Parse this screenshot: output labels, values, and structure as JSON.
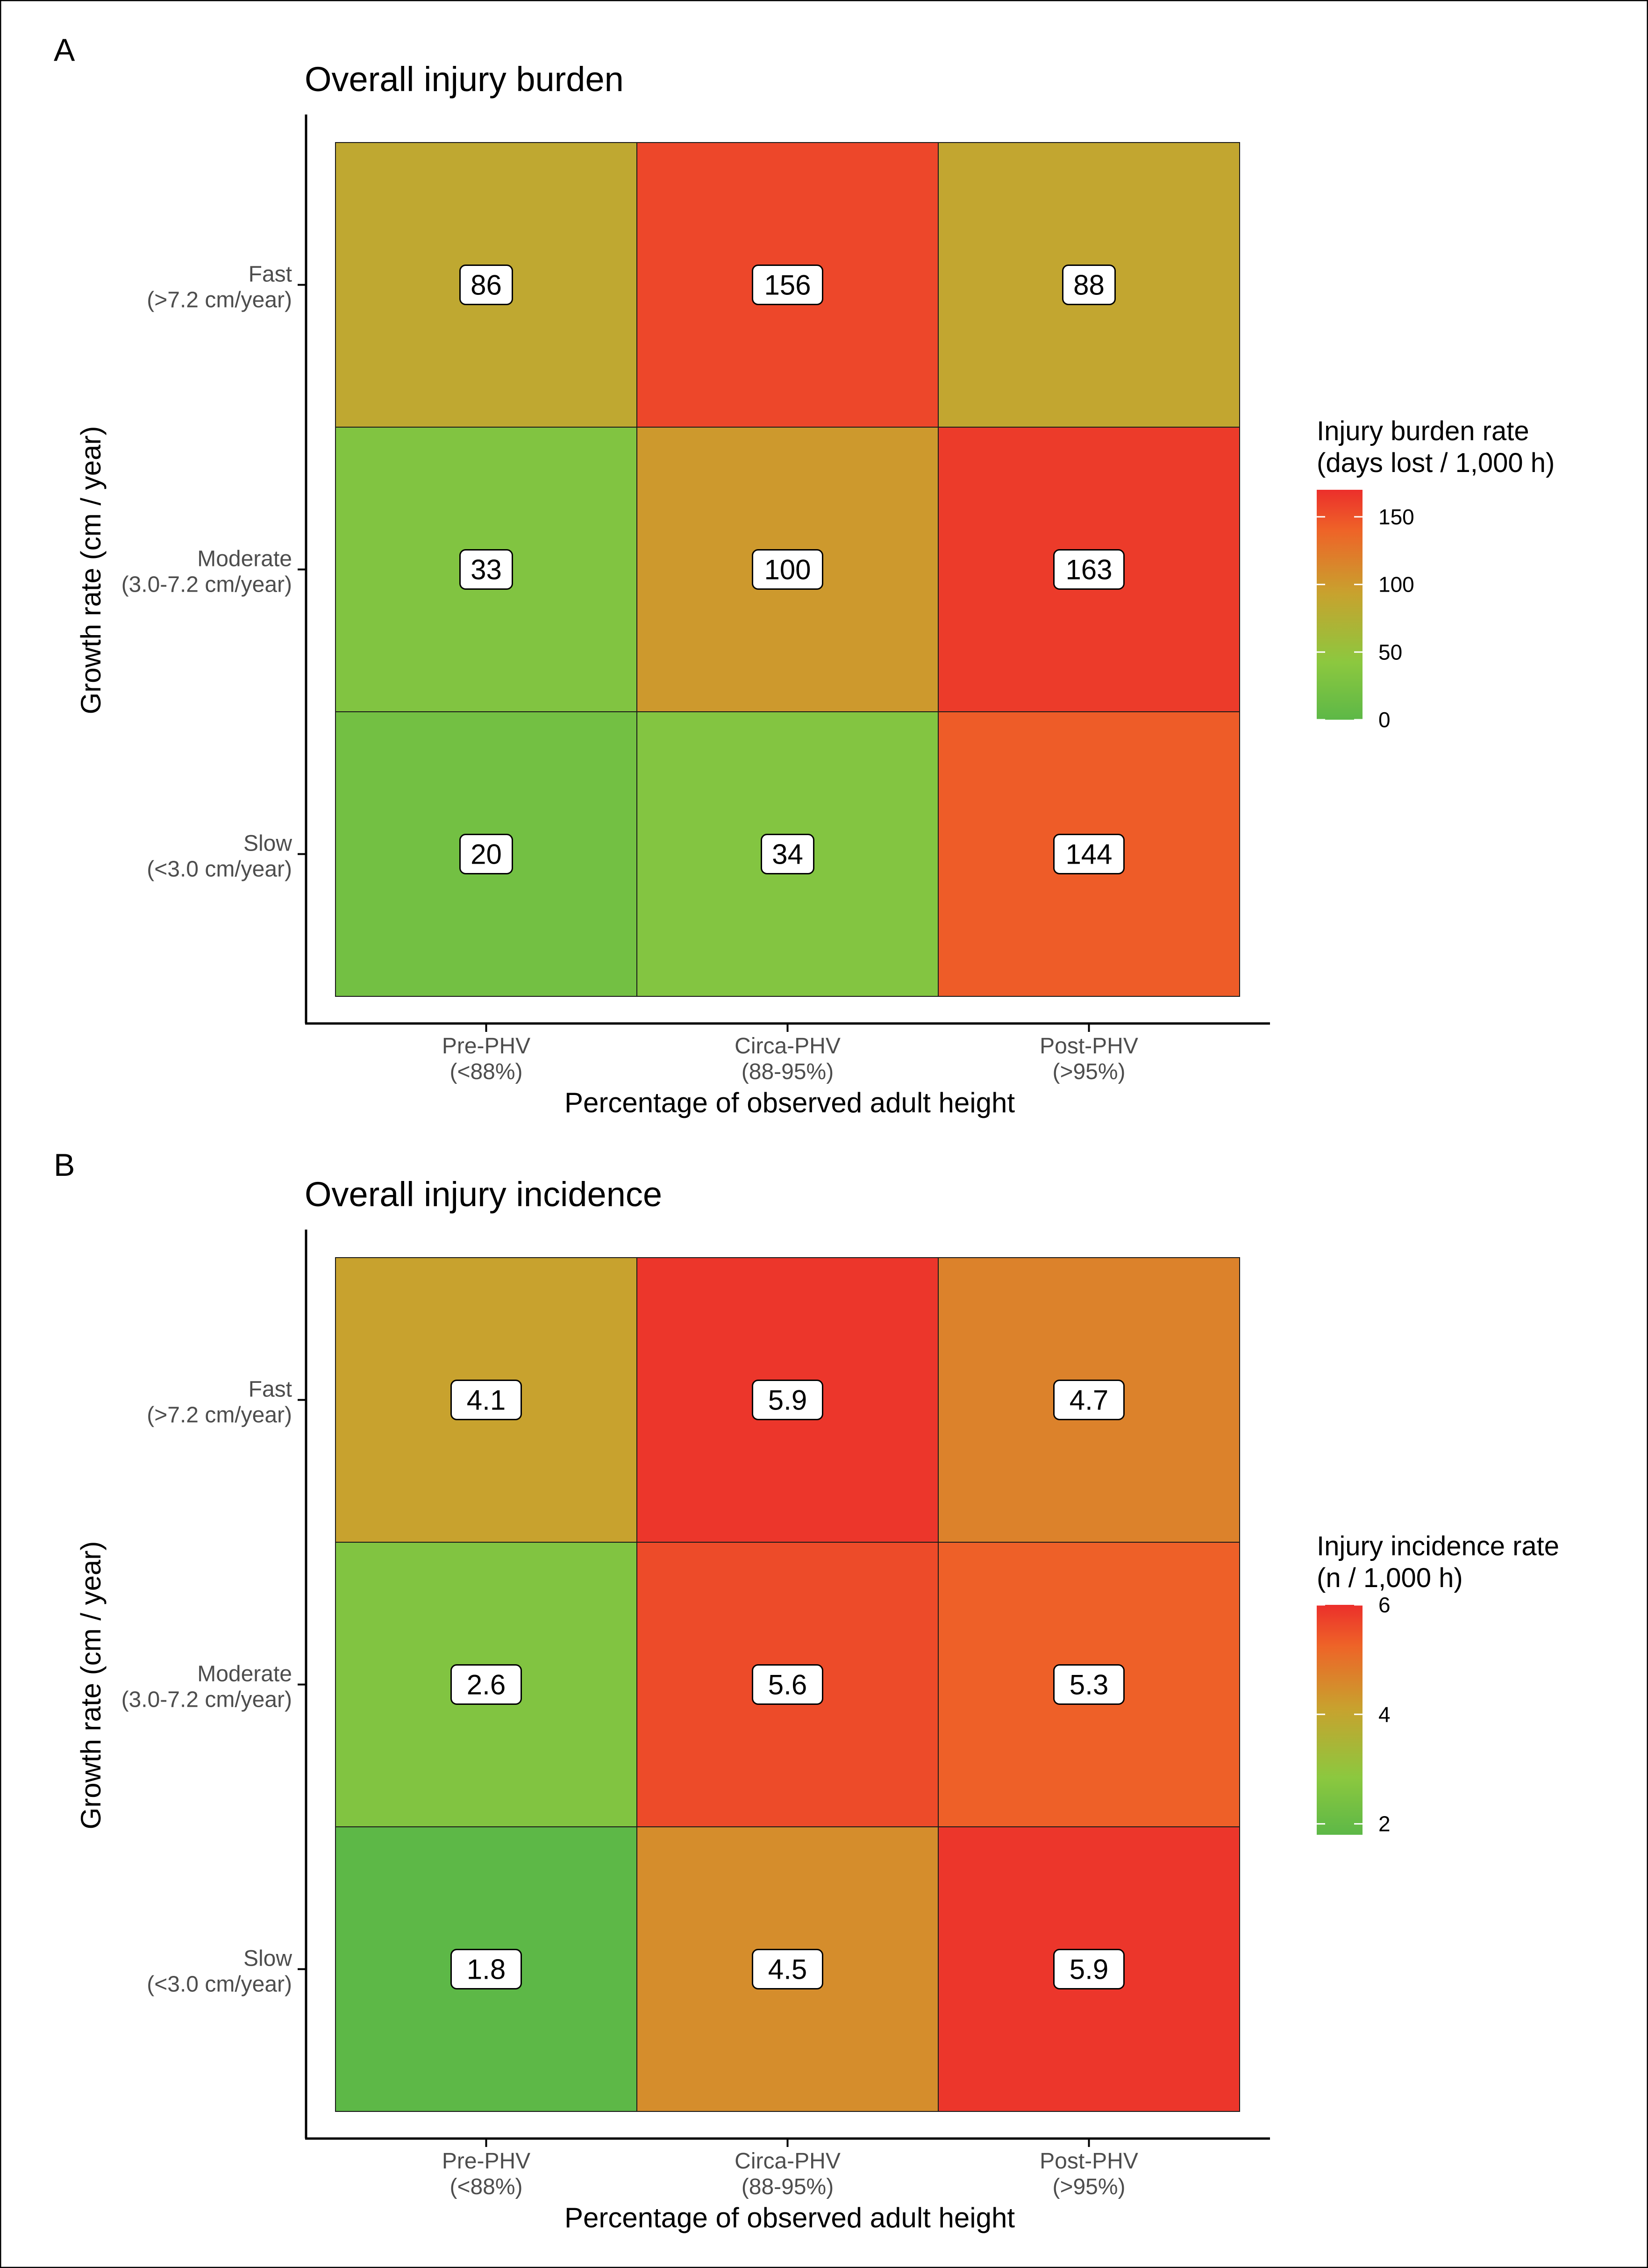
{
  "chart_data": [
    {
      "panel": "A",
      "type": "heatmap",
      "title": "Overall injury burden",
      "xlabel": "Percentage of observed adult height",
      "ylabel": "Growth rate (cm / year)",
      "x_categories": [
        {
          "line1": "Pre-PHV",
          "line2": "(<88%)"
        },
        {
          "line1": "Circa-PHV",
          "line2": "(88-95%)"
        },
        {
          "line1": "Post-PHV",
          "line2": "(>95%)"
        }
      ],
      "y_categories": [
        {
          "line1": "Fast",
          "line2": "(>7.2 cm/year)"
        },
        {
          "line1": "Moderate",
          "line2": "(3.0-7.2 cm/year)"
        },
        {
          "line1": "Slow",
          "line2": "(<3.0 cm/year)"
        }
      ],
      "values": [
        [
          86,
          156,
          88
        ],
        [
          33,
          100,
          163
        ],
        [
          20,
          34,
          144
        ]
      ],
      "labels": [
        [
          "86",
          "156",
          "88"
        ],
        [
          "33",
          "100",
          "163"
        ],
        [
          "20",
          "34",
          "144"
        ]
      ],
      "legend": {
        "title_line1": "Injury burden rate",
        "title_line2": "(days lost / 1,000 h)",
        "ticks": [
          0,
          50,
          100,
          150
        ],
        "range": [
          0,
          170
        ]
      }
    },
    {
      "panel": "B",
      "type": "heatmap",
      "title": "Overall injury incidence",
      "xlabel": "Percentage of observed adult height",
      "ylabel": "Growth rate (cm / year)",
      "x_categories": [
        {
          "line1": "Pre-PHV",
          "line2": "(<88%)"
        },
        {
          "line1": "Circa-PHV",
          "line2": "(88-95%)"
        },
        {
          "line1": "Post-PHV",
          "line2": "(>95%)"
        }
      ],
      "y_categories": [
        {
          "line1": "Fast",
          "line2": "(>7.2 cm/year)"
        },
        {
          "line1": "Moderate",
          "line2": "(3.0-7.2 cm/year)"
        },
        {
          "line1": "Slow",
          "line2": "(<3.0 cm/year)"
        }
      ],
      "values": [
        [
          4.1,
          5.9,
          4.7
        ],
        [
          2.6,
          5.6,
          5.3
        ],
        [
          1.8,
          4.5,
          5.9
        ]
      ],
      "labels": [
        [
          "4.1",
          "5.9",
          "4.7"
        ],
        [
          "2.6",
          "5.6",
          "5.3"
        ],
        [
          "1.8",
          "4.5",
          "5.9"
        ]
      ],
      "legend": {
        "title_line1": "Injury incidence rate",
        "title_line2": "(n / 1,000 h)",
        "ticks": [
          2,
          4,
          6
        ],
        "range": [
          1.8,
          6.0
        ]
      }
    }
  ],
  "colors": {
    "low": "#5db847",
    "light_green": "#8cc83f",
    "mid": "#c8a22e",
    "orange": "#ee6428",
    "high": "#ec2f2b"
  }
}
